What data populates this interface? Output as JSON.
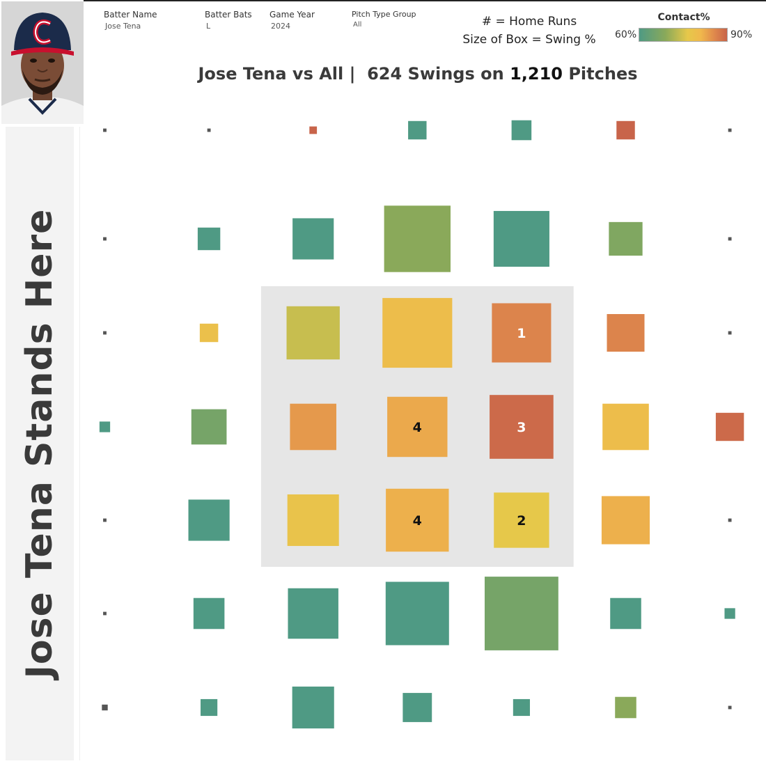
{
  "filters": {
    "batter_name": {
      "label": "Batter Name",
      "value": "Jose Tena"
    },
    "batter_bats": {
      "label": "Batter Bats",
      "value": "L"
    },
    "game_year": {
      "label": "Game Year",
      "value": "2024"
    },
    "pitch_type_group": {
      "label": "Pitch Type Group",
      "value": "All"
    }
  },
  "legend": {
    "hr_note": "# = Home Runs",
    "size_note": "Size of Box = Swing %",
    "color_title": "Contact%",
    "color_min": "60%",
    "color_max": "90%",
    "colors": [
      "#4f9a84",
      "#8aa95a",
      "#e6c84a",
      "#f0b84c",
      "#e08a4c",
      "#c8644a"
    ]
  },
  "title": {
    "part1": "Jose Tena vs All |",
    "part2": "624 Swings on",
    "part3": "1,210",
    "part4": "Pitches"
  },
  "side_label": "Jose Tena Stands Here",
  "chart_data": {
    "type": "heatmap",
    "description_fields": [
      "row",
      "col",
      "swing_pct",
      "contact_pct",
      "hr"
    ],
    "rows": 7,
    "cols": 7,
    "strike_zone": {
      "rows": [
        2,
        4
      ],
      "cols": [
        2,
        4
      ]
    },
    "color_range": [
      60,
      90
    ],
    "cells": [
      {
        "row": 0,
        "col": 0,
        "swing_pct": 0.2,
        "contact_pct": 60,
        "hr": null
      },
      {
        "row": 0,
        "col": 1,
        "swing_pct": 0.2,
        "contact_pct": 60,
        "hr": null
      },
      {
        "row": 0,
        "col": 2,
        "swing_pct": 1,
        "contact_pct": 90,
        "hr": null
      },
      {
        "row": 0,
        "col": 3,
        "swing_pct": 6,
        "contact_pct": 60,
        "hr": null
      },
      {
        "row": 0,
        "col": 4,
        "swing_pct": 7,
        "contact_pct": 60,
        "hr": null
      },
      {
        "row": 0,
        "col": 5,
        "swing_pct": 6,
        "contact_pct": 90,
        "hr": null
      },
      {
        "row": 0,
        "col": 6,
        "swing_pct": 0.2,
        "contact_pct": 60,
        "hr": null
      },
      {
        "row": 1,
        "col": 0,
        "swing_pct": 0.2,
        "contact_pct": 60,
        "hr": null
      },
      {
        "row": 1,
        "col": 1,
        "swing_pct": 9,
        "contact_pct": 60,
        "hr": null
      },
      {
        "row": 1,
        "col": 2,
        "swing_pct": 30,
        "contact_pct": 60,
        "hr": null
      },
      {
        "row": 1,
        "col": 3,
        "swing_pct": 78,
        "contact_pct": 66,
        "hr": null
      },
      {
        "row": 1,
        "col": 4,
        "swing_pct": 55,
        "contact_pct": 60,
        "hr": null
      },
      {
        "row": 1,
        "col": 5,
        "swing_pct": 20,
        "contact_pct": 65,
        "hr": null
      },
      {
        "row": 1,
        "col": 6,
        "swing_pct": 0.2,
        "contact_pct": 60,
        "hr": null
      },
      {
        "row": 2,
        "col": 0,
        "swing_pct": 0.2,
        "contact_pct": 60,
        "hr": null
      },
      {
        "row": 2,
        "col": 1,
        "swing_pct": 6,
        "contact_pct": 75,
        "hr": null
      },
      {
        "row": 2,
        "col": 2,
        "swing_pct": 50,
        "contact_pct": 70,
        "hr": null
      },
      {
        "row": 2,
        "col": 3,
        "swing_pct": 86,
        "contact_pct": 76,
        "hr": null
      },
      {
        "row": 2,
        "col": 4,
        "swing_pct": 62,
        "contact_pct": 85,
        "hr": 1
      },
      {
        "row": 2,
        "col": 5,
        "swing_pct": 25,
        "contact_pct": 85,
        "hr": null
      },
      {
        "row": 2,
        "col": 6,
        "swing_pct": 0.2,
        "contact_pct": 60,
        "hr": null
      },
      {
        "row": 3,
        "col": 0,
        "swing_pct": 2,
        "contact_pct": 60,
        "hr": null
      },
      {
        "row": 3,
        "col": 1,
        "swing_pct": 22,
        "contact_pct": 64,
        "hr": null
      },
      {
        "row": 3,
        "col": 2,
        "swing_pct": 38,
        "contact_pct": 82,
        "hr": null
      },
      {
        "row": 3,
        "col": 3,
        "swing_pct": 64,
        "contact_pct": 80,
        "hr": 4
      },
      {
        "row": 3,
        "col": 4,
        "swing_pct": 72,
        "contact_pct": 89,
        "hr": 3
      },
      {
        "row": 3,
        "col": 5,
        "swing_pct": 38,
        "contact_pct": 76,
        "hr": null
      },
      {
        "row": 3,
        "col": 6,
        "swing_pct": 14,
        "contact_pct": 89,
        "hr": null
      },
      {
        "row": 4,
        "col": 0,
        "swing_pct": 0.2,
        "contact_pct": 60,
        "hr": null
      },
      {
        "row": 4,
        "col": 1,
        "swing_pct": 30,
        "contact_pct": 60,
        "hr": null
      },
      {
        "row": 4,
        "col": 2,
        "swing_pct": 47,
        "contact_pct": 74,
        "hr": null
      },
      {
        "row": 4,
        "col": 3,
        "swing_pct": 70,
        "contact_pct": 79,
        "hr": 4
      },
      {
        "row": 4,
        "col": 4,
        "swing_pct": 54,
        "contact_pct": 72,
        "hr": 2
      },
      {
        "row": 4,
        "col": 5,
        "swing_pct": 41,
        "contact_pct": 79,
        "hr": null
      },
      {
        "row": 4,
        "col": 6,
        "swing_pct": 0.2,
        "contact_pct": 60,
        "hr": null
      },
      {
        "row": 5,
        "col": 0,
        "swing_pct": 0.2,
        "contact_pct": 60,
        "hr": null
      },
      {
        "row": 5,
        "col": 1,
        "swing_pct": 17,
        "contact_pct": 60,
        "hr": null
      },
      {
        "row": 5,
        "col": 2,
        "swing_pct": 45,
        "contact_pct": 60,
        "hr": null
      },
      {
        "row": 5,
        "col": 3,
        "swing_pct": 71,
        "contact_pct": 60,
        "hr": null
      },
      {
        "row": 5,
        "col": 4,
        "swing_pct": 96,
        "contact_pct": 64,
        "hr": null
      },
      {
        "row": 5,
        "col": 5,
        "swing_pct": 17,
        "contact_pct": 60,
        "hr": null
      },
      {
        "row": 5,
        "col": 6,
        "swing_pct": 2,
        "contact_pct": 60,
        "hr": null
      },
      {
        "row": 6,
        "col": 0,
        "swing_pct": 0.6,
        "contact_pct": 60,
        "hr": null
      },
      {
        "row": 6,
        "col": 1,
        "swing_pct": 5,
        "contact_pct": 60,
        "hr": null
      },
      {
        "row": 6,
        "col": 2,
        "swing_pct": 31,
        "contact_pct": 60,
        "hr": null
      },
      {
        "row": 6,
        "col": 3,
        "swing_pct": 15,
        "contact_pct": 60,
        "hr": null
      },
      {
        "row": 6,
        "col": 4,
        "swing_pct": 5,
        "contact_pct": 60,
        "hr": null
      },
      {
        "row": 6,
        "col": 5,
        "swing_pct": 8,
        "contact_pct": 66,
        "hr": null
      },
      {
        "row": 6,
        "col": 6,
        "swing_pct": 0.2,
        "contact_pct": 60,
        "hr": null
      }
    ]
  }
}
